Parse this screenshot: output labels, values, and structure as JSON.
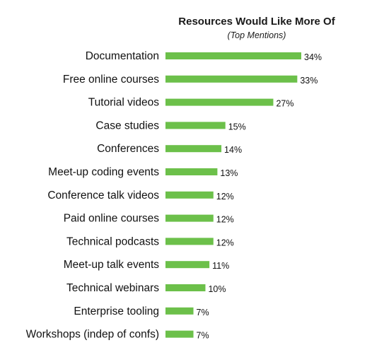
{
  "chart_data": {
    "type": "bar",
    "orientation": "horizontal",
    "title": "Resources Would Like More Of",
    "subtitle": "(Top Mentions)",
    "categories": [
      "Documentation",
      "Free online courses",
      "Tutorial videos",
      "Case studies",
      "Conferences",
      "Meet-up coding events",
      "Conference talk videos",
      "Paid online courses",
      "Technical podcasts",
      "Meet-up talk events",
      "Technical webinars",
      "Enterprise tooling",
      "Workshops (indep of confs)"
    ],
    "values": [
      34,
      33,
      27,
      15,
      14,
      13,
      12,
      12,
      12,
      11,
      10,
      7,
      7
    ],
    "value_labels": [
      "34%",
      "33%",
      "27%",
      "15%",
      "14%",
      "13%",
      "12%",
      "12%",
      "12%",
      "11%",
      "10%",
      "7%",
      "7%"
    ],
    "unit": "%",
    "bar_color": "#6cc04a",
    "grid": false,
    "legend": "none"
  }
}
